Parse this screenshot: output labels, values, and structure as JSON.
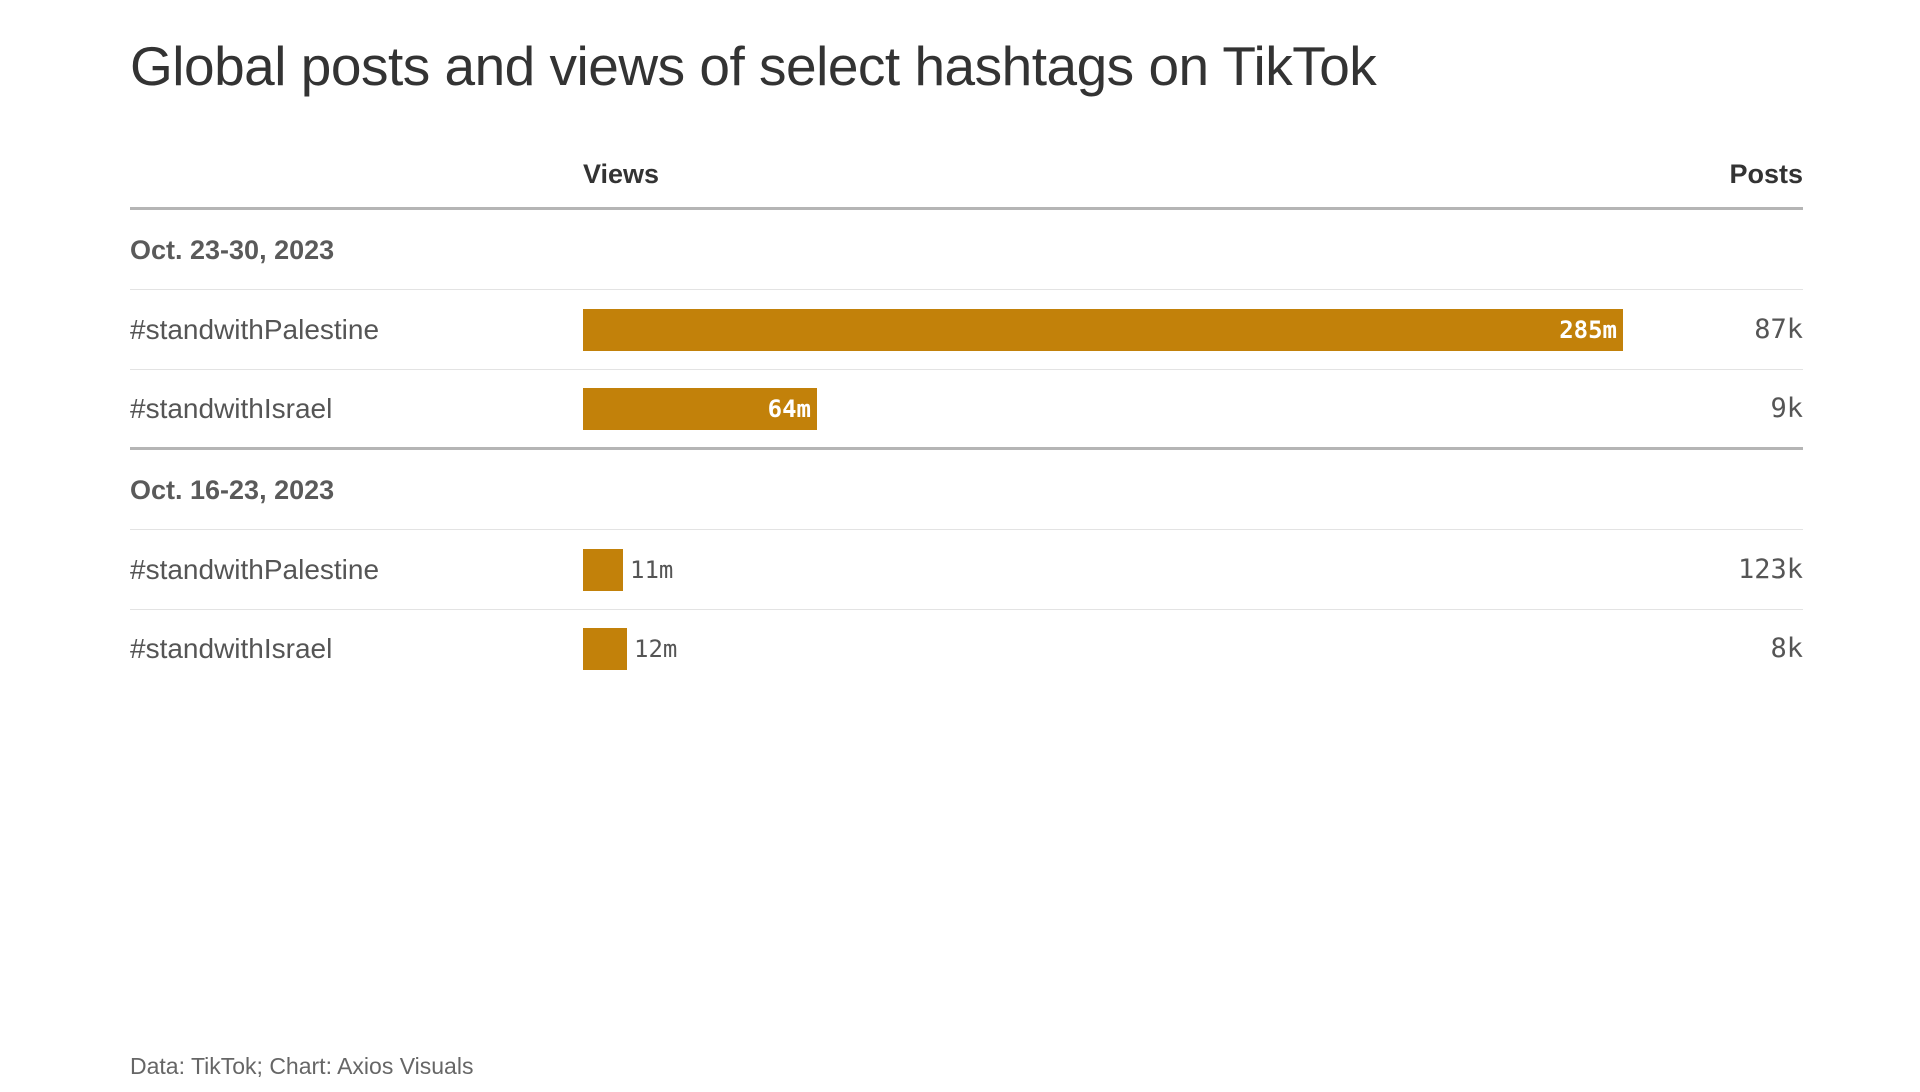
{
  "title": "Global posts and views of select hashtags on TikTok",
  "footer": "Data: TikTok; Chart: Axios Visuals",
  "colors": {
    "bar": "#c2810a",
    "text": "#333333",
    "rule": "#b5b5b5"
  },
  "chart_data": {
    "type": "bar",
    "orientation": "horizontal",
    "title": "Global posts and views of select hashtags on TikTok",
    "columns": [
      "Views",
      "Posts"
    ],
    "groups": [
      {
        "label": "Oct. 23-30, 2023",
        "rows": [
          {
            "label": "#standwithPalestine",
            "views": 285,
            "views_label": "285m",
            "posts": 87,
            "posts_label": "87k"
          },
          {
            "label": "#standwithIsrael",
            "views": 64,
            "views_label": "64m",
            "posts": 9,
            "posts_label": "9k"
          }
        ]
      },
      {
        "label": "Oct. 16-23, 2023",
        "rows": [
          {
            "label": "#standwithPalestine",
            "views": 11,
            "views_label": "11m",
            "posts": 123,
            "posts_label": "123k"
          },
          {
            "label": "#standwithIsrael",
            "views": 12,
            "views_label": "12m",
            "posts": 8,
            "posts_label": "8k"
          }
        ]
      }
    ],
    "views_unit": "m",
    "posts_unit": "k",
    "xlim": [
      0,
      300
    ]
  }
}
